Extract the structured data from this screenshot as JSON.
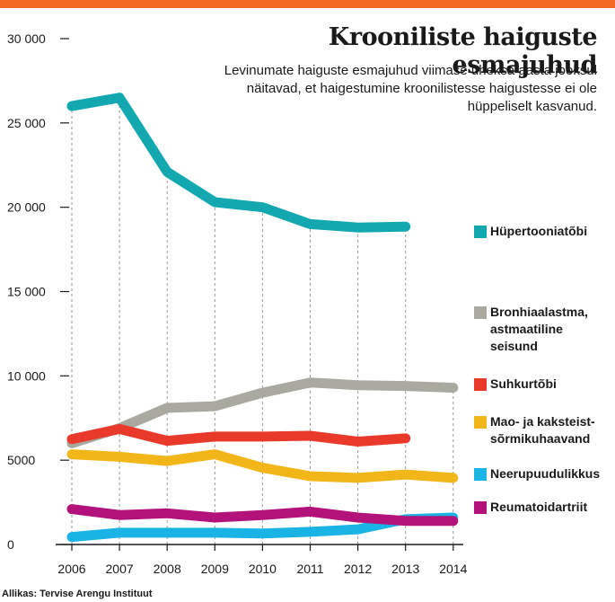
{
  "header": {
    "title": "Krooniliste haiguste esmajuhud",
    "subtitle": "Levinumate haiguste esmajuhud viimase üheksa aasta jooksul näitavad, et haigestumine kroonilistesse haigustesse ei ole hüppeliselt kasvanud.",
    "accent_color": "#f26a21"
  },
  "source": "Allikas: Tervise Arengu Instituut",
  "chart_data": {
    "type": "line",
    "title": "Krooniliste haiguste esmajuhud",
    "subtitle": "Levinumate haiguste esmajuhud viimase üheksa aasta jooksul näitavad, et haigestumine kroonilistesse haigustesse ei ole hüppeliselt kasvanud.",
    "xlabel": "",
    "ylabel": "",
    "x": [
      "2006",
      "2007",
      "2008",
      "2009",
      "2010",
      "2011",
      "2012",
      "2013",
      "2014"
    ],
    "ylim": [
      0,
      30000
    ],
    "yticks": [
      0,
      5000,
      10000,
      15000,
      20000,
      25000,
      30000
    ],
    "ytick_labels": [
      "0",
      "5000",
      "10 000",
      "15 000",
      "20 000",
      "25 000",
      "30 000"
    ],
    "grid": "vertical dashed",
    "legend_position": "right",
    "series": [
      {
        "name": "Hüpertooniatõbi",
        "color": "#13a8b0",
        "values": [
          26000,
          26500,
          22100,
          20300,
          20000,
          19000,
          18800,
          18850,
          null
        ]
      },
      {
        "name": "Bronhiaalastma, astmaatiline seisund",
        "color": "#a9a9a0",
        "values": [
          6000,
          6900,
          8100,
          8200,
          9000,
          9600,
          9450,
          9400,
          9300
        ]
      },
      {
        "name": "Suhkurtõbi",
        "color": "#e8392a",
        "values": [
          6250,
          6850,
          6150,
          6400,
          6400,
          6450,
          6100,
          6300,
          null
        ]
      },
      {
        "name": "Mao- ja kaksteist-sõrmikuhaavand",
        "color": "#f2b619",
        "values": [
          5350,
          5200,
          4950,
          5350,
          4550,
          4050,
          3950,
          4150,
          3950
        ]
      },
      {
        "name": "Neerupuudulikkus",
        "color": "#1ab3e6",
        "values": [
          450,
          700,
          700,
          700,
          650,
          750,
          900,
          1500,
          1600
        ]
      },
      {
        "name": "Reumatoidartriit",
        "color": "#b3127a",
        "values": [
          2100,
          1750,
          1850,
          1600,
          1750,
          1950,
          1600,
          1400,
          1400
        ]
      }
    ]
  }
}
